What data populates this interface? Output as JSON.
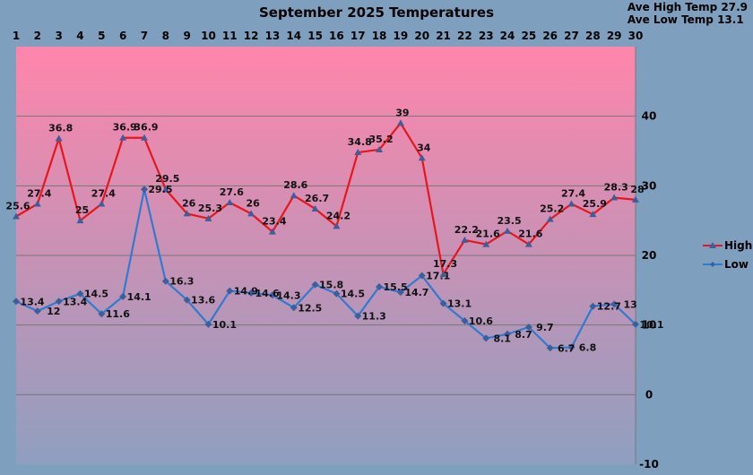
{
  "title": "September 2025 Temperatures",
  "stats": {
    "ave_high": "Ave High Temp 27.9",
    "ave_low": "Ave Low Temp 13.1"
  },
  "colors": {
    "background": "#7f9fbf",
    "plot_top": "#ff85ab",
    "plot_bottom": "#8f9fc0",
    "high": "#e8161b",
    "low": "#2f7bd0",
    "marker": "#3a5f9a"
  },
  "chart_data": {
    "type": "line",
    "title": "September 2025 Temperatures",
    "categories": [
      1,
      2,
      3,
      4,
      5,
      6,
      7,
      8,
      9,
      10,
      11,
      12,
      13,
      14,
      15,
      16,
      17,
      18,
      19,
      20,
      21,
      22,
      23,
      24,
      25,
      26,
      27,
      28,
      29,
      30
    ],
    "x_axis_position": "top",
    "y_axis_position": "right",
    "ylim": [
      -10,
      50
    ],
    "yticks": [
      -10,
      0,
      10,
      20,
      30,
      40
    ],
    "grid": true,
    "legend": "right",
    "series": [
      {
        "name": "High",
        "values": [
          25.6,
          27.4,
          36.8,
          25,
          27.4,
          36.9,
          36.9,
          29.5,
          26,
          25.3,
          27.6,
          26,
          23.4,
          28.6,
          26.7,
          24.2,
          34.8,
          35.2,
          39,
          34,
          17.3,
          22.2,
          21.6,
          23.5,
          21.6,
          25.2,
          27.4,
          25.9,
          28.3,
          28
        ]
      },
      {
        "name": "Low",
        "values": [
          13.4,
          12,
          13.4,
          14.5,
          11.6,
          14.1,
          29.5,
          16.3,
          13.6,
          10.1,
          14.9,
          14.6,
          14.3,
          12.5,
          15.8,
          14.5,
          11.3,
          15.5,
          14.7,
          17.1,
          13.1,
          10.6,
          8.1,
          8.7,
          9.7,
          6.7,
          6.8,
          12.7,
          13,
          10.1
        ]
      }
    ]
  }
}
